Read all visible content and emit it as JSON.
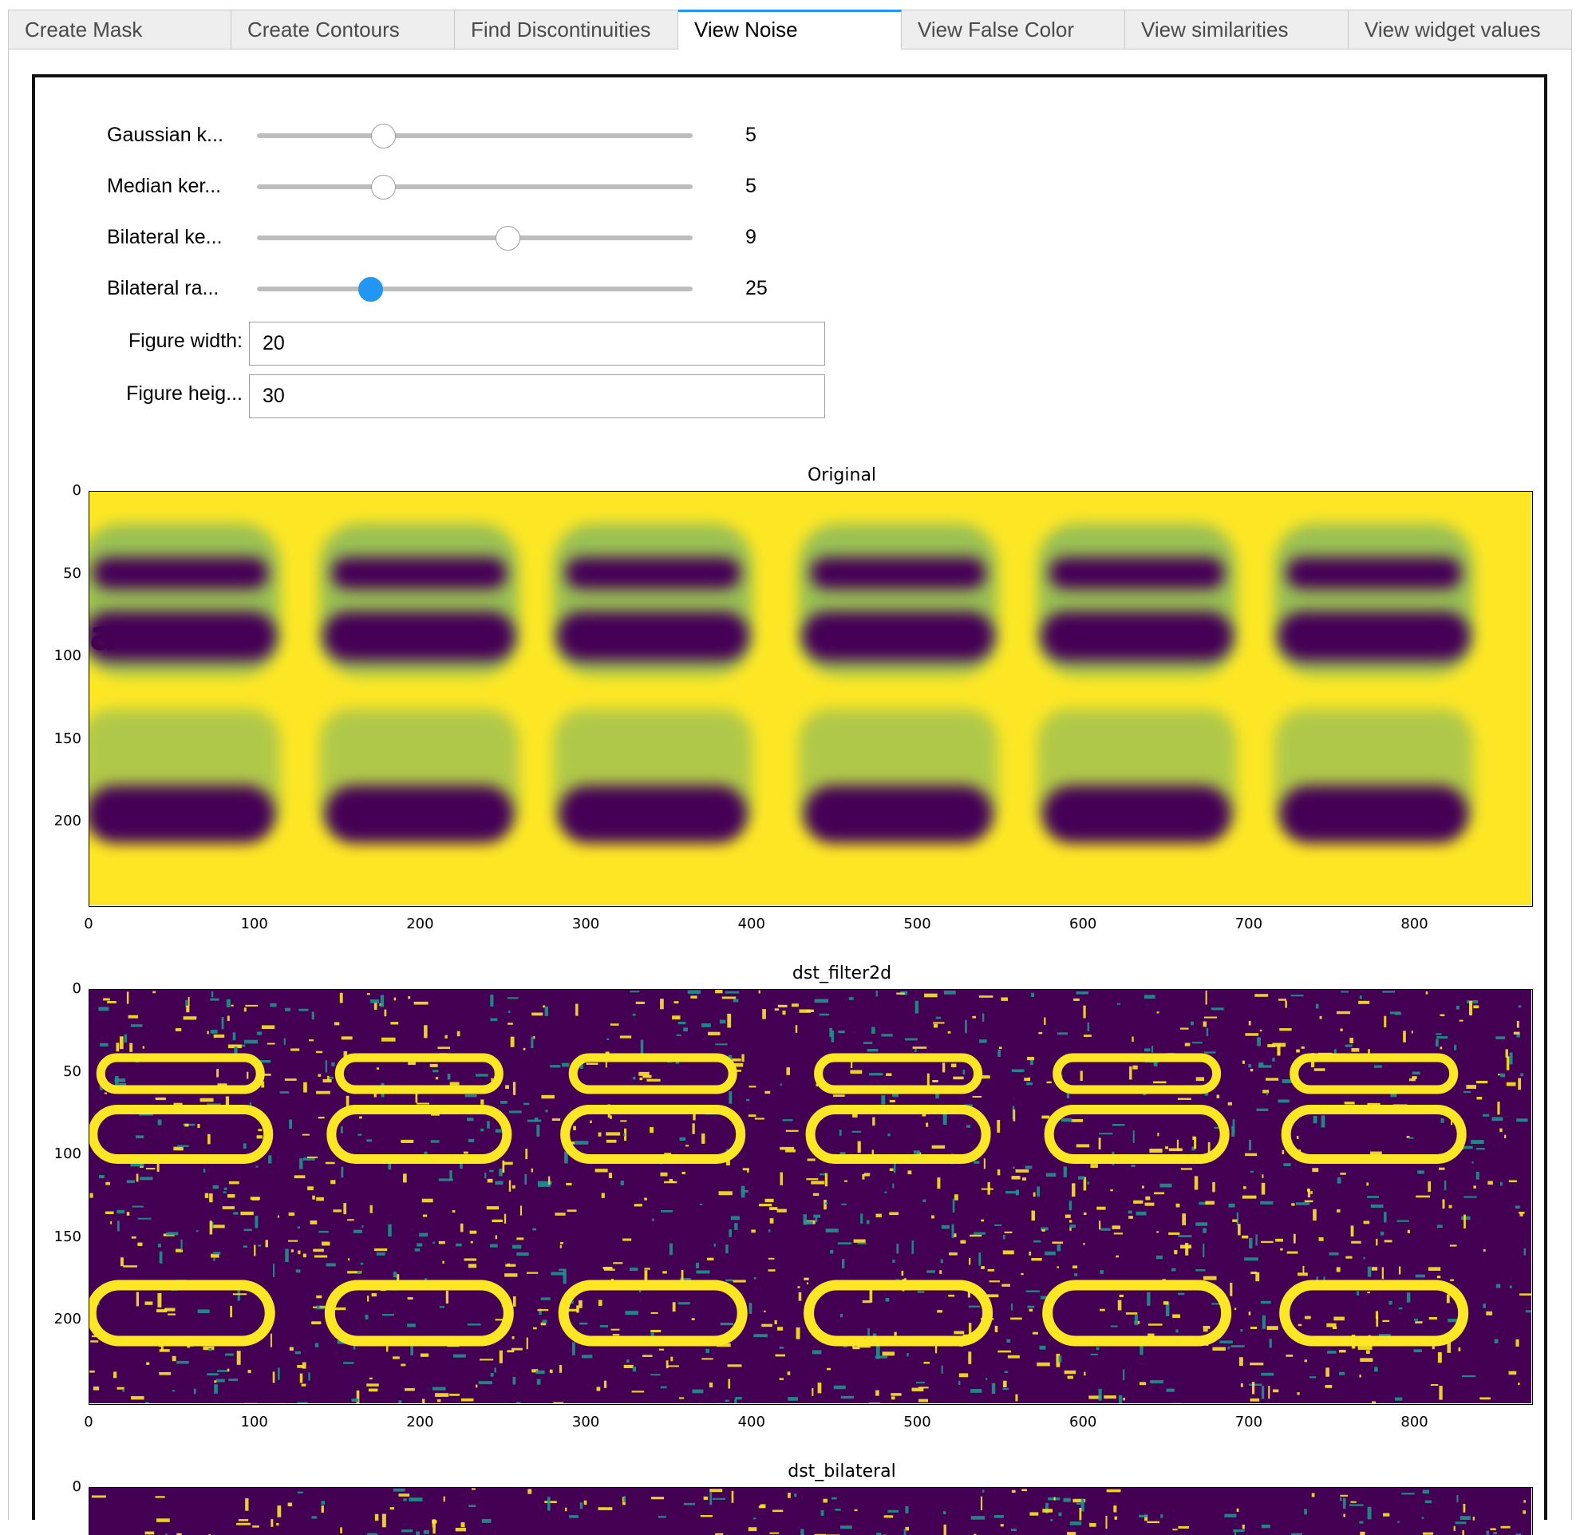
{
  "tabs": [
    {
      "label": "Create Mask",
      "active": false
    },
    {
      "label": "Create Contours",
      "active": false
    },
    {
      "label": "Find Discontinuities",
      "active": false
    },
    {
      "label": "View Noise",
      "active": true
    },
    {
      "label": "View False Color",
      "active": false
    },
    {
      "label": "View similarities",
      "active": false
    },
    {
      "label": "View widget values",
      "active": false
    }
  ],
  "sliders": [
    {
      "label": "Gaussian k...",
      "value": "5",
      "fraction": 0.29,
      "focused": false
    },
    {
      "label": "Median ker...",
      "value": "5",
      "fraction": 0.29,
      "focused": false
    },
    {
      "label": "Bilateral ke...",
      "value": "9",
      "fraction": 0.575,
      "focused": false
    },
    {
      "label": "Bilateral ra...",
      "value": "25",
      "fraction": 0.26,
      "focused": true
    }
  ],
  "figure_width": {
    "label": "Figure width:",
    "value": "20"
  },
  "figure_height": {
    "label": "Figure heig...",
    "value": "30"
  },
  "colors": {
    "viridis_dark": "#440154",
    "viridis_teal": "#21918c",
    "viridis_yellow": "#fde725",
    "accent": "#2196f3"
  },
  "plots": [
    {
      "title": "Original",
      "style": "blur",
      "x_ticks": [
        "0",
        "100",
        "200",
        "300",
        "400",
        "500",
        "600",
        "700",
        "800"
      ],
      "y_ticks": [
        "0",
        "50",
        "100",
        "150",
        "200"
      ]
    },
    {
      "title": "dst_filter2d",
      "style": "edges",
      "x_ticks": [
        "0",
        "100",
        "200",
        "300",
        "400",
        "500",
        "600",
        "700",
        "800"
      ],
      "y_ticks": [
        "0",
        "50",
        "100",
        "150",
        "200"
      ]
    },
    {
      "title": "dst_bilateral",
      "style": "edges",
      "x_ticks": [],
      "y_ticks": [
        "0"
      ]
    }
  ]
}
